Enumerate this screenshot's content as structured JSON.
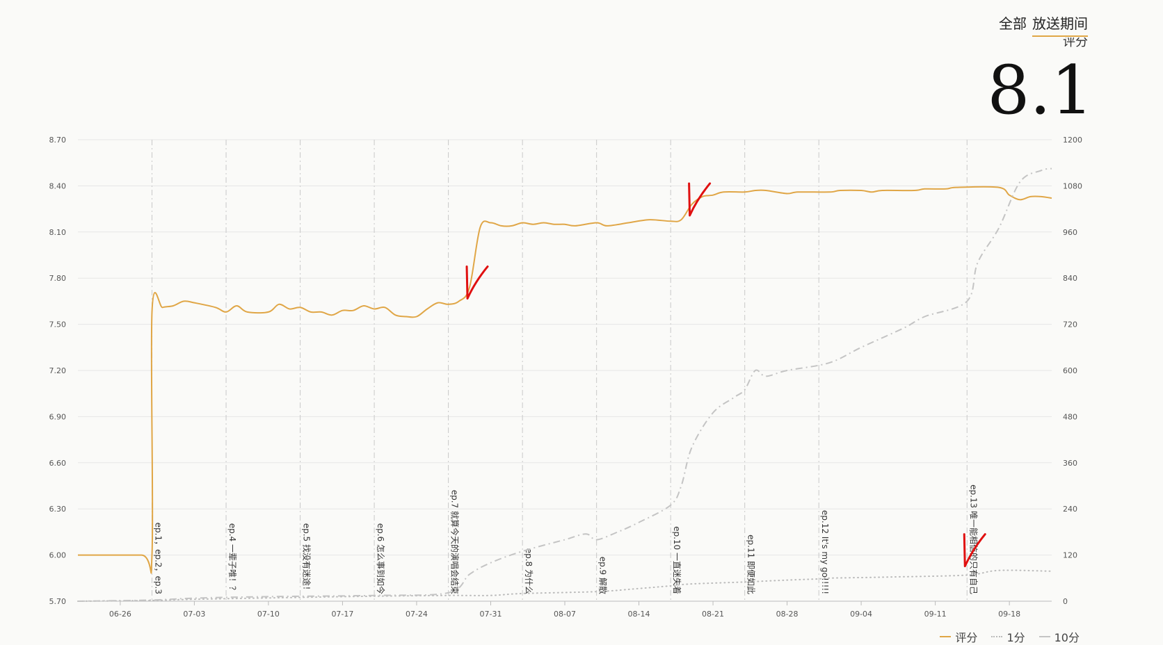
{
  "tabs": [
    {
      "label": "全部",
      "active": false
    },
    {
      "label": "放送期间",
      "active": true
    }
  ],
  "score": {
    "label": "评分",
    "value": "8.1"
  },
  "colors": {
    "score": "#e0a646",
    "one": "#bbbbbb",
    "ten": "#c4c4c4",
    "annotation": "#e01010"
  },
  "chart_data": {
    "type": "line",
    "x_ticks": [
      "06-26",
      "07-03",
      "07-10",
      "07-17",
      "07-24",
      "07-31",
      "08-07",
      "08-14",
      "08-21",
      "08-28",
      "09-04",
      "09-11",
      "09-18"
    ],
    "x_range": [
      "06-22",
      "09-22"
    ],
    "y_left": {
      "ticks": [
        "8.70",
        "8.40",
        "8.10",
        "7.80",
        "7.50",
        "7.20",
        "6.90",
        "6.60",
        "6.30",
        "6.00",
        "5.70"
      ],
      "range": [
        5.7,
        8.7
      ]
    },
    "y_right": {
      "ticks": [
        "1200",
        "1080",
        "960",
        "840",
        "720",
        "600",
        "480",
        "360",
        "240",
        "120",
        "0"
      ],
      "range": [
        0,
        1200
      ]
    },
    "grid": true,
    "legend_position": "bottom-right",
    "episodes": [
      {
        "date": "06-29",
        "label": "ep.1，ep.2，ep.3"
      },
      {
        "date": "07-06",
        "label": "ep.4 一辈子唯！？"
      },
      {
        "date": "07-13",
        "label": "ep.5 找没有迷途！"
      },
      {
        "date": "07-20",
        "label": "ep.6 怎么事到如今"
      },
      {
        "date": "07-27",
        "label": "ep.7 就算今天的演唱会结束"
      },
      {
        "date": "08-03",
        "label": "ep.8 为什么"
      },
      {
        "date": "08-10",
        "label": "ep.9 解散"
      },
      {
        "date": "08-17",
        "label": "ep.10 一直迷失着"
      },
      {
        "date": "08-24",
        "label": "ep.11 即便如此"
      },
      {
        "date": "08-31",
        "label": "ep.12 It's my go!!!!!"
      },
      {
        "date": "09-14",
        "label": "ep.13 唯一能相信的只有自己"
      }
    ],
    "series": [
      {
        "name": "评分",
        "axis": "left",
        "style": "solid",
        "points": [
          [
            "06-22",
            6.0
          ],
          [
            "06-28",
            6.0
          ],
          [
            "06-29",
            6.0
          ],
          [
            "06-29",
            7.58
          ],
          [
            "06-30",
            7.61
          ],
          [
            "07-01",
            7.62
          ],
          [
            "07-02",
            7.65
          ],
          [
            "07-03",
            7.64
          ],
          [
            "07-05",
            7.61
          ],
          [
            "07-06",
            7.58
          ],
          [
            "07-07",
            7.62
          ],
          [
            "07-08",
            7.58
          ],
          [
            "07-10",
            7.58
          ],
          [
            "07-11",
            7.63
          ],
          [
            "07-12",
            7.6
          ],
          [
            "07-13",
            7.61
          ],
          [
            "07-14",
            7.58
          ],
          [
            "07-15",
            7.58
          ],
          [
            "07-16",
            7.56
          ],
          [
            "07-17",
            7.59
          ],
          [
            "07-18",
            7.59
          ],
          [
            "07-19",
            7.62
          ],
          [
            "07-20",
            7.6
          ],
          [
            "07-21",
            7.61
          ],
          [
            "07-22",
            7.56
          ],
          [
            "07-23",
            7.55
          ],
          [
            "07-24",
            7.55
          ],
          [
            "07-25",
            7.6
          ],
          [
            "07-26",
            7.64
          ],
          [
            "07-27",
            7.63
          ],
          [
            "07-28",
            7.65
          ],
          [
            "07-29",
            7.74
          ],
          [
            "07-30",
            8.13
          ],
          [
            "07-31",
            8.16
          ],
          [
            "08-01",
            8.14
          ],
          [
            "08-02",
            8.14
          ],
          [
            "08-03",
            8.16
          ],
          [
            "08-04",
            8.15
          ],
          [
            "08-05",
            8.16
          ],
          [
            "08-06",
            8.15
          ],
          [
            "08-07",
            8.15
          ],
          [
            "08-08",
            8.14
          ],
          [
            "08-10",
            8.16
          ],
          [
            "08-11",
            8.14
          ],
          [
            "08-13",
            8.16
          ],
          [
            "08-15",
            8.18
          ],
          [
            "08-17",
            8.17
          ],
          [
            "08-18",
            8.18
          ],
          [
            "08-19",
            8.28
          ],
          [
            "08-20",
            8.33
          ],
          [
            "08-21",
            8.34
          ],
          [
            "08-22",
            8.36
          ],
          [
            "08-24",
            8.36
          ],
          [
            "08-25",
            8.37
          ],
          [
            "08-26",
            8.37
          ],
          [
            "08-28",
            8.35
          ],
          [
            "08-29",
            8.36
          ],
          [
            "09-01",
            8.36
          ],
          [
            "09-02",
            8.37
          ],
          [
            "09-04",
            8.37
          ],
          [
            "09-05",
            8.36
          ],
          [
            "09-06",
            8.37
          ],
          [
            "09-09",
            8.37
          ],
          [
            "09-10",
            8.38
          ],
          [
            "09-12",
            8.38
          ],
          [
            "09-13",
            8.39
          ],
          [
            "09-17",
            8.39
          ],
          [
            "09-18",
            8.34
          ],
          [
            "09-19",
            8.31
          ],
          [
            "09-20",
            8.33
          ],
          [
            "09-21",
            8.33
          ],
          [
            "09-22",
            8.32
          ]
        ]
      },
      {
        "name": "1分",
        "axis": "right",
        "style": "dotted",
        "points": [
          [
            "06-22",
            0
          ],
          [
            "06-29",
            2
          ],
          [
            "07-03",
            5
          ],
          [
            "07-13",
            10
          ],
          [
            "07-20",
            13
          ],
          [
            "07-27",
            15
          ],
          [
            "07-31",
            15
          ],
          [
            "08-03",
            20
          ],
          [
            "08-10",
            25
          ],
          [
            "08-14",
            33
          ],
          [
            "08-17",
            40
          ],
          [
            "08-19",
            45
          ],
          [
            "08-24",
            50
          ],
          [
            "08-28",
            55
          ],
          [
            "08-31",
            58
          ],
          [
            "09-01",
            60
          ],
          [
            "09-07",
            63
          ],
          [
            "09-14",
            68
          ],
          [
            "09-17",
            80
          ],
          [
            "09-22",
            78
          ]
        ]
      },
      {
        "name": "10分",
        "axis": "right",
        "style": "dashdot",
        "points": [
          [
            "06-22",
            0
          ],
          [
            "06-29",
            3
          ],
          [
            "07-03",
            8
          ],
          [
            "07-10",
            12
          ],
          [
            "07-20",
            15
          ],
          [
            "07-27",
            22
          ],
          [
            "07-29",
            70
          ],
          [
            "07-31",
            100
          ],
          [
            "08-03",
            130
          ],
          [
            "08-07",
            160
          ],
          [
            "08-09",
            175
          ],
          [
            "08-10",
            160
          ],
          [
            "08-12",
            180
          ],
          [
            "08-14",
            205
          ],
          [
            "08-17",
            250
          ],
          [
            "08-18",
            300
          ],
          [
            "08-19",
            400
          ],
          [
            "08-21",
            490
          ],
          [
            "08-23",
            530
          ],
          [
            "08-24",
            550
          ],
          [
            "08-25",
            600
          ],
          [
            "08-26",
            585
          ],
          [
            "08-28",
            600
          ],
          [
            "09-01",
            620
          ],
          [
            "09-04",
            660
          ],
          [
            "09-08",
            710
          ],
          [
            "09-10",
            740
          ],
          [
            "09-14",
            780
          ],
          [
            "09-15",
            880
          ],
          [
            "09-17",
            970
          ],
          [
            "09-19",
            1090
          ],
          [
            "09-21",
            1120
          ],
          [
            "09-22",
            1125
          ]
        ]
      }
    ],
    "annotations": [
      {
        "type": "checkmark",
        "near_date": "07-29"
      },
      {
        "type": "checkmark",
        "near_date": "08-19"
      },
      {
        "type": "checkmark",
        "near_date": "09-14"
      }
    ]
  }
}
